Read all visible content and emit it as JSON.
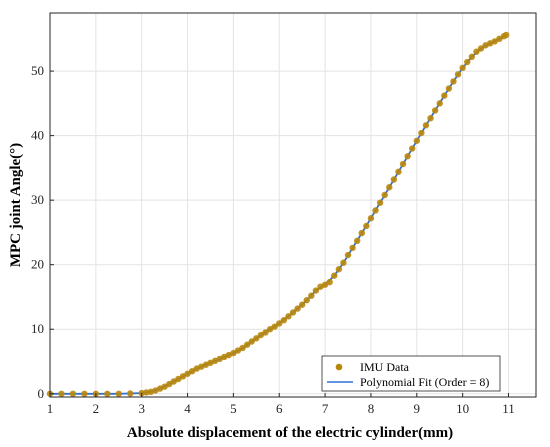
{
  "chart_data": {
    "type": "scatter",
    "title": "",
    "xlabel": "Absolute displacement of the electric cylinder(mm)",
    "ylabel": "MPC joint Angle(°)",
    "xlim": [
      1,
      11.6
    ],
    "ylim": [
      -0.5,
      59
    ],
    "xticks": [
      "1",
      "2",
      "3",
      "4",
      "5",
      "6",
      "7",
      "8",
      "9",
      "10",
      "11"
    ],
    "yticks": [
      "0",
      "10",
      "20",
      "30",
      "40",
      "50"
    ],
    "grid": true,
    "legend_position": "bottom-right",
    "series": [
      {
        "name": "IMU Data",
        "kind": "scatter",
        "color": "#b8860b",
        "x": [
          1.0,
          1.25,
          1.5,
          1.75,
          2.0,
          2.25,
          2.5,
          2.75,
          3.0,
          3.1,
          3.2,
          3.3,
          3.4,
          3.5,
          3.6,
          3.7,
          3.8,
          3.9,
          4.0,
          4.1,
          4.2,
          4.3,
          4.4,
          4.5,
          4.6,
          4.7,
          4.8,
          4.9,
          5.0,
          5.1,
          5.2,
          5.3,
          5.4,
          5.5,
          5.6,
          5.7,
          5.8,
          5.9,
          6.0,
          6.1,
          6.2,
          6.3,
          6.4,
          6.5,
          6.6,
          6.7,
          6.8,
          6.9,
          7.0,
          7.1,
          7.2,
          7.3,
          7.4,
          7.5,
          7.6,
          7.7,
          7.8,
          7.9,
          8.0,
          8.1,
          8.2,
          8.3,
          8.4,
          8.5,
          8.6,
          8.7,
          8.8,
          8.9,
          9.0,
          9.1,
          9.2,
          9.3,
          9.4,
          9.5,
          9.6,
          9.7,
          9.8,
          9.9,
          10.0,
          10.1,
          10.2,
          10.3,
          10.4,
          10.5,
          10.6,
          10.7,
          10.8,
          10.9,
          10.95
        ],
        "y": [
          0.0,
          0.0,
          0.0,
          0.0,
          0.0,
          0.0,
          0.0,
          0.05,
          0.1,
          0.2,
          0.3,
          0.5,
          0.8,
          1.1,
          1.5,
          1.9,
          2.3,
          2.7,
          3.1,
          3.5,
          3.9,
          4.2,
          4.5,
          4.8,
          5.1,
          5.4,
          5.7,
          6.0,
          6.3,
          6.7,
          7.1,
          7.6,
          8.1,
          8.6,
          9.1,
          9.5,
          10.0,
          10.4,
          10.9,
          11.4,
          12.0,
          12.6,
          13.2,
          13.8,
          14.5,
          15.2,
          16.0,
          16.6,
          16.9,
          17.3,
          18.3,
          19.3,
          20.3,
          21.5,
          22.6,
          23.7,
          24.9,
          26.0,
          27.2,
          28.4,
          29.6,
          30.8,
          32.0,
          33.2,
          34.4,
          35.6,
          36.8,
          38.0,
          39.2,
          40.4,
          41.6,
          42.7,
          43.9,
          45.0,
          46.2,
          47.3,
          48.4,
          49.5,
          50.5,
          51.4,
          52.2,
          53.0,
          53.5,
          54.0,
          54.3,
          54.6,
          55.0,
          55.4,
          55.6
        ]
      },
      {
        "name": "Polynomial Fit (Order = 8)",
        "kind": "line",
        "color": "#2f6fd8",
        "x": [
          1.0,
          1.5,
          2.0,
          2.5,
          3.0,
          3.2,
          3.4,
          3.6,
          3.8,
          4.0,
          4.2,
          4.4,
          4.6,
          4.8,
          5.0,
          5.2,
          5.4,
          5.6,
          5.8,
          6.0,
          6.2,
          6.4,
          6.6,
          6.8,
          7.0,
          7.2,
          7.4,
          7.6,
          7.8,
          8.0,
          8.2,
          8.4,
          8.6,
          8.8,
          9.0,
          9.2,
          9.4,
          9.6,
          9.8,
          10.0,
          10.2,
          10.4,
          10.6,
          10.8,
          10.95
        ],
        "y": [
          0.0,
          0.0,
          0.0,
          0.0,
          0.1,
          0.3,
          0.8,
          1.5,
          2.3,
          3.1,
          3.9,
          4.5,
          5.1,
          5.7,
          6.3,
          7.1,
          8.1,
          9.1,
          10.0,
          10.9,
          12.0,
          13.2,
          14.5,
          16.0,
          16.9,
          18.3,
          20.3,
          22.6,
          24.9,
          27.2,
          29.6,
          32.0,
          34.4,
          36.8,
          39.2,
          41.6,
          43.9,
          46.2,
          48.4,
          50.5,
          52.2,
          53.5,
          54.3,
          55.0,
          55.6
        ]
      }
    ]
  }
}
